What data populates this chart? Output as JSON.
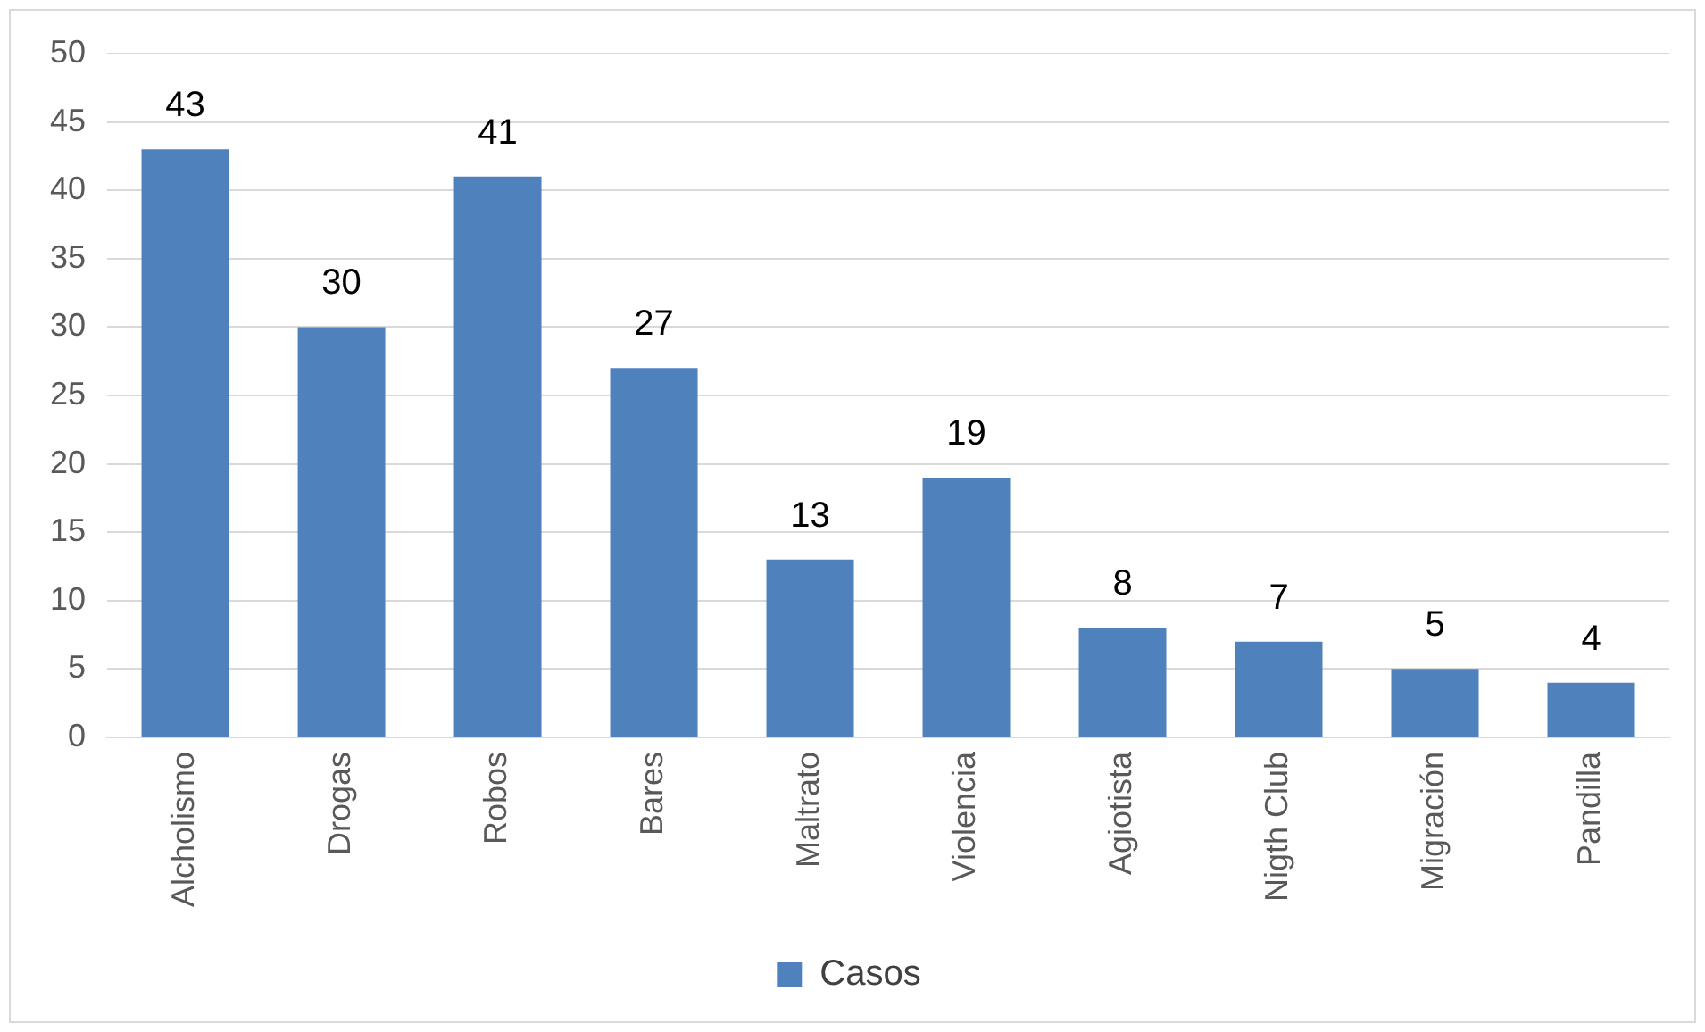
{
  "chart_data": {
    "type": "bar",
    "categories": [
      "Alcholismo",
      "Drogas",
      "Robos",
      "Bares",
      "Maltrato",
      "Violencia",
      "Agiotista",
      "Nigth Club",
      "Migración",
      "Pandilla"
    ],
    "series": [
      {
        "name": "Casos",
        "color": "#4f81bd",
        "values": [
          43,
          30,
          41,
          27,
          13,
          19,
          8,
          7,
          5,
          4
        ]
      }
    ],
    "ylim": [
      0,
      50
    ],
    "yticks": [
      0,
      5,
      10,
      15,
      20,
      25,
      30,
      35,
      40,
      45,
      50
    ],
    "grid": "y",
    "legend": "bottom",
    "data_labels": true
  }
}
